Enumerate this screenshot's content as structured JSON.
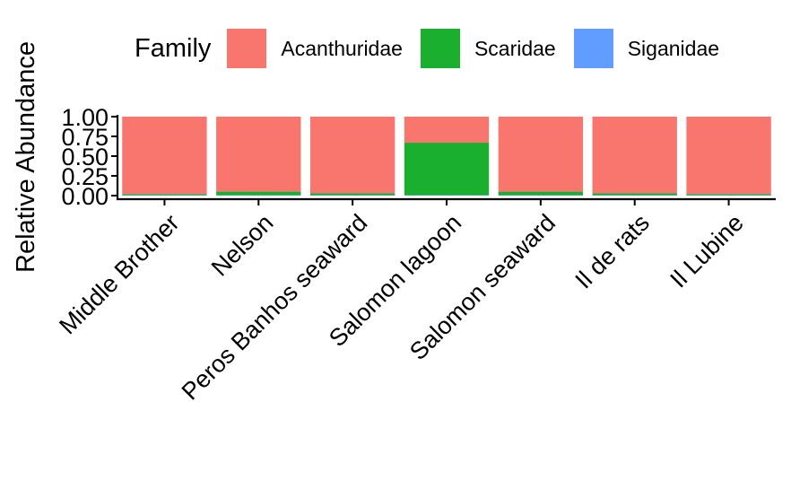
{
  "chart_data": {
    "type": "bar",
    "stacked": true,
    "title": "",
    "xlabel": "",
    "ylabel": "Relative Abundance",
    "ylim": [
      0,
      1
    ],
    "yticks": [
      "0.00",
      "0.25",
      "0.50",
      "0.75",
      "1.00"
    ],
    "grid": false,
    "legend_placement": "top",
    "legend_title": "Family",
    "categories": [
      "Middle Brother",
      "Nelson",
      "Peros Banhos seaward",
      "Salomon lagoon",
      "Salomon seaward",
      "Il de rats",
      "Il Lubine"
    ],
    "series": [
      {
        "name": "Acanthuridae",
        "color": "#F8766D",
        "values": [
          0.98,
          0.95,
          0.97,
          0.33,
          0.95,
          0.97,
          0.98
        ]
      },
      {
        "name": "Scaridae",
        "color": "#1AAF2E",
        "values": [
          0.015,
          0.045,
          0.025,
          0.665,
          0.045,
          0.025,
          0.015
        ]
      },
      {
        "name": "Siganidae",
        "color": "#619CFF",
        "values": [
          0.005,
          0.005,
          0.005,
          0.005,
          0.005,
          0.005,
          0.005
        ]
      }
    ]
  }
}
